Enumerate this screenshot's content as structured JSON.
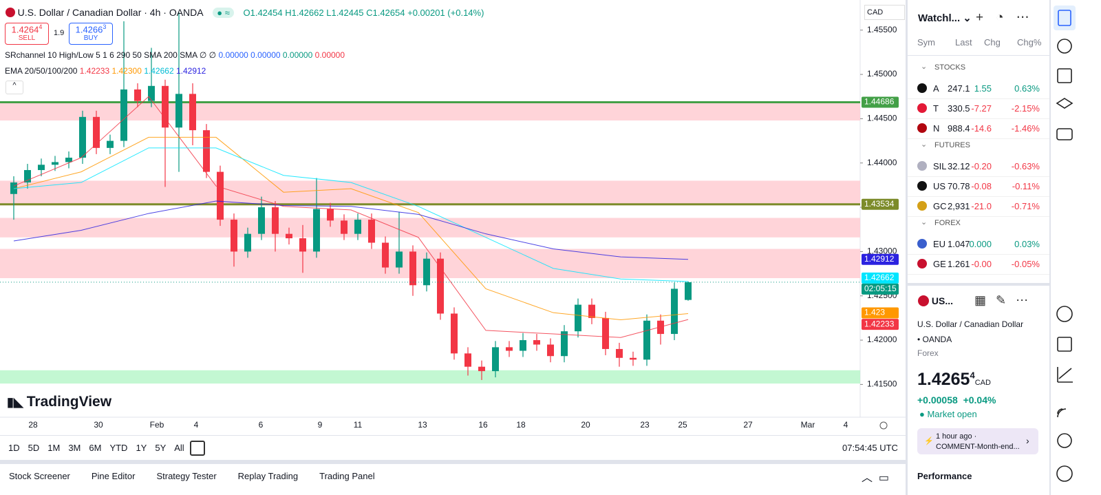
{
  "header": {
    "symbol": "U.S. Dollar / Canadian Dollar · 4h · OANDA",
    "o": "O1.42454",
    "h": "H1.42662",
    "l": "L1.42445",
    "c": "C1.42654",
    "chg": "+0.00201 (+0.14%)"
  },
  "sell": {
    "price": "1.4264",
    "sup": "4",
    "label": "SELL"
  },
  "spread": "1.9",
  "buy": {
    "price": "1.4266",
    "sup": "3",
    "label": "BUY"
  },
  "sr": {
    "label": "SRchannel 10 High/Low 5 1 6 290 50 SMA 200 SMA ∅ ∅",
    "values": [
      "0.00000",
      "0.00000",
      "0.00000",
      "0.00000"
    ]
  },
  "ema_legend": {
    "label": "EMA 20/50/100/200",
    "values": [
      "1.42233",
      "1.42300",
      "1.42662",
      "1.42912"
    ]
  },
  "currency": "CAD",
  "watermark": "TradingView",
  "chart_data": {
    "type": "candlestick",
    "up_color": "#089981",
    "down_color": "#f23645",
    "open": [
      1.4365,
      1.4378,
      1.4392,
      1.4398,
      1.4401,
      1.4406,
      1.4452,
      1.4417,
      1.4425,
      1.4483,
      1.447,
      1.4487,
      1.444,
      1.4478,
      1.4437,
      1.439,
      1.4336,
      1.43,
      1.432,
      1.435,
      1.432,
      1.4315,
      1.43,
      1.4348,
      1.4335,
      1.432,
      1.4336,
      1.431,
      1.4282,
      1.43,
      1.4262,
      1.4292,
      1.423,
      1.4185,
      1.417,
      1.4165,
      1.4192,
      1.4188,
      1.42,
      1.4195,
      1.4182,
      1.421,
      1.424,
      1.4225,
      1.419,
      1.418,
      1.4178,
      1.4222,
      1.4207,
      1.42454
    ],
    "high": [
      1.4385,
      1.4399,
      1.4405,
      1.4408,
      1.4413,
      1.4459,
      1.4459,
      1.4432,
      1.456,
      1.449,
      1.453,
      1.4494,
      1.457,
      1.449,
      1.4444,
      1.4397,
      1.4343,
      1.4327,
      1.4362,
      1.4357,
      1.4327,
      1.433,
      1.4383,
      1.4355,
      1.4342,
      1.4343,
      1.4343,
      1.4317,
      1.4345,
      1.4307,
      1.4299,
      1.4299,
      1.4237,
      1.4192,
      1.4177,
      1.4199,
      1.4199,
      1.4208,
      1.4207,
      1.4202,
      1.4217,
      1.4247,
      1.4247,
      1.4232,
      1.4197,
      1.4187,
      1.4229,
      1.4229,
      1.4265,
      1.42662
    ],
    "low": [
      1.4336,
      1.4371,
      1.4385,
      1.4391,
      1.4394,
      1.4399,
      1.441,
      1.441,
      1.4418,
      1.4463,
      1.4463,
      1.4373,
      1.439,
      1.442,
      1.4383,
      1.4329,
      1.4283,
      1.4293,
      1.4313,
      1.43,
      1.4308,
      1.4276,
      1.4293,
      1.4328,
      1.4313,
      1.4313,
      1.4303,
      1.4275,
      1.4275,
      1.425,
      1.4255,
      1.4223,
      1.4178,
      1.416,
      1.4155,
      1.4158,
      1.4181,
      1.4181,
      1.4188,
      1.4175,
      1.4175,
      1.4203,
      1.4218,
      1.4183,
      1.417,
      1.4171,
      1.4171,
      1.4195,
      1.42,
      1.42445
    ],
    "close": [
      1.4378,
      1.4392,
      1.4398,
      1.4401,
      1.4406,
      1.4452,
      1.4417,
      1.4425,
      1.4483,
      1.447,
      1.4487,
      1.444,
      1.4478,
      1.4437,
      1.439,
      1.4336,
      1.43,
      1.432,
      1.435,
      1.432,
      1.4315,
      1.43,
      1.4348,
      1.4335,
      1.432,
      1.4336,
      1.431,
      1.4282,
      1.43,
      1.4262,
      1.4292,
      1.423,
      1.4185,
      1.417,
      1.4165,
      1.4192,
      1.4188,
      1.42,
      1.4195,
      1.4182,
      1.421,
      1.424,
      1.4225,
      1.419,
      1.418,
      1.4178,
      1.4222,
      1.4207,
      1.4258,
      1.42654
    ],
    "series": [
      {
        "name": "EMA 20",
        "color": "#f23645",
        "values": [
          1.4374,
          1.4406,
          1.4475,
          1.4374,
          1.4351,
          1.4347,
          1.4316,
          1.4211,
          1.4207,
          1.4203,
          1.42233
        ]
      },
      {
        "name": "EMA 50",
        "color": "#ff9800",
        "values": [
          1.4371,
          1.439,
          1.4429,
          1.4429,
          1.4367,
          1.4371,
          1.4344,
          1.4258,
          1.4231,
          1.4223,
          1.423
        ]
      },
      {
        "name": "EMA 100",
        "color": "#00e5ff",
        "values": [
          1.4371,
          1.4378,
          1.4417,
          1.4417,
          1.4386,
          1.4378,
          1.4351,
          1.4316,
          1.4281,
          1.4269,
          1.42662
        ]
      },
      {
        "name": "EMA 200",
        "color": "#2b22e0",
        "values": [
          1.4312,
          1.4324,
          1.4343,
          1.4357,
          1.4352,
          1.4351,
          1.4342,
          1.432,
          1.4303,
          1.4294,
          1.42912
        ]
      }
    ],
    "zones": [
      {
        "top": 1.4468,
        "bottom": 1.4448,
        "color": "#ffcdd2"
      },
      {
        "top": 1.438,
        "bottom": 1.4352,
        "color": "#ffcdd2"
      },
      {
        "top": 1.4338,
        "bottom": 1.4316,
        "color": "#ffcdd2"
      },
      {
        "top": 1.4303,
        "bottom": 1.427,
        "color": "#ffcdd2"
      },
      {
        "top": 1.4166,
        "bottom": 1.4151,
        "color": "#b9f6ca"
      }
    ],
    "levels": [
      {
        "value": 1.44686,
        "color": "#43a047"
      },
      {
        "value": 1.43534,
        "color": "#7c8b2a"
      }
    ],
    "countdown": "02:05:15",
    "ylim": [
      1.4113,
      1.4584
    ],
    "yticks": [
      {
        "value": 1.455,
        "label": "1.45500"
      },
      {
        "value": 1.45,
        "label": "1.45000"
      },
      {
        "value": 1.445,
        "label": "1.44500"
      },
      {
        "value": 1.44,
        "label": "1.44000"
      },
      {
        "value": 1.435,
        "label": "1.43500"
      },
      {
        "value": 1.43,
        "label": "1.43000"
      },
      {
        "value": 1.425,
        "label": "1.42500"
      },
      {
        "value": 1.42,
        "label": "1.42000"
      },
      {
        "value": 1.415,
        "label": "1.41500"
      }
    ],
    "xticks": [
      {
        "value": 1.4,
        "label": "28"
      },
      {
        "value": 6.15,
        "label": "30"
      },
      {
        "value": 10.4,
        "label": "Feb"
      },
      {
        "value": 13.25,
        "label": "4"
      },
      {
        "value": 17.95,
        "label": "6"
      },
      {
        "value": 22.25,
        "label": "9"
      },
      {
        "value": 25,
        "label": "11"
      },
      {
        "value": 29.7,
        "label": "13"
      },
      {
        "value": 34.1,
        "label": "16"
      },
      {
        "value": 36.85,
        "label": "18"
      },
      {
        "value": 41.55,
        "label": "20"
      },
      {
        "value": 45.85,
        "label": "23"
      },
      {
        "value": 48.6,
        "label": "25"
      },
      {
        "value": 53.35,
        "label": "27"
      },
      {
        "value": 57.7,
        "label": "Mar"
      },
      {
        "value": 60.45,
        "label": "4"
      }
    ]
  },
  "ranges": [
    "1D",
    "5D",
    "1M",
    "3M",
    "6M",
    "YTD",
    "1Y",
    "5Y",
    "All"
  ],
  "clock": "07:54:45 UTC",
  "tabs": [
    "Stock Screener",
    "Pine Editor",
    "Strategy Tester",
    "Replay Trading",
    "Trading Panel"
  ],
  "watchlist": {
    "title": "Watchl...",
    "columns": [
      "Sym",
      "Last",
      "Chg",
      "Chg%"
    ],
    "sections": [
      {
        "name": "STOCKS",
        "rows": [
          {
            "icon": "#111",
            "sym": "A",
            "last": "247.1",
            "chg": "1.55",
            "pct": "0.63%",
            "up": true
          },
          {
            "icon": "#e31937",
            "sym": "T",
            "last": "330.5",
            "chg": "-7.27",
            "pct": "-2.15%",
            "up": false
          },
          {
            "icon": "#b1060f",
            "sym": "N",
            "last": "988.4",
            "chg": "-14.6",
            "pct": "-1.46%",
            "up": false
          }
        ]
      },
      {
        "name": "FUTURES",
        "rows": [
          {
            "icon": "#b0b0c0",
            "sym": "SIL",
            "last": "32.12",
            "chg": "-0.20",
            "pct": "-0.63%",
            "up": false
          },
          {
            "icon": "#111",
            "sym": "US",
            "last": "70.78",
            "chg": "-0.08",
            "pct": "-0.11%",
            "up": false
          },
          {
            "icon": "#d4a017",
            "sym": "GC",
            "last": "2,931",
            "chg": "-21.0",
            "pct": "-0.71%",
            "up": false
          }
        ]
      },
      {
        "name": "FOREX",
        "rows": [
          {
            "icon": "#3a5fcd",
            "sym": "EU",
            "last": "1.047",
            "chg": "0.000",
            "pct": "0.03%",
            "up": true
          },
          {
            "icon": "#c8102e",
            "sym": "GE",
            "last": "1.261",
            "chg": "-0.00",
            "pct": "-0.05%",
            "up": false
          }
        ]
      }
    ]
  },
  "detail": {
    "sym": "US...",
    "name": "U.S. Dollar / Canadian Dollar",
    "exchange": "OANDA",
    "kind": "Forex",
    "price": "1.4265",
    "sup": "4",
    "currency": "CAD",
    "chg": "+0.00058",
    "pct": "+0.04%",
    "status": "Market open",
    "news_time": "1 hour ago ·",
    "news": "COMMENT-Month-end...",
    "performance": "Performance"
  }
}
